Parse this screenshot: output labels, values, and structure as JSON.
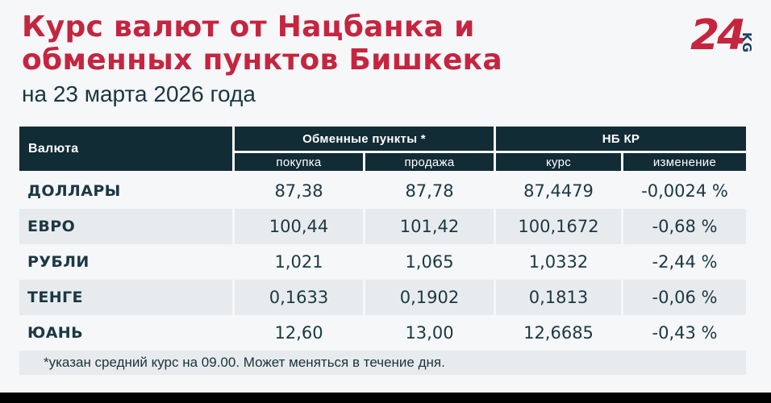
{
  "header": {
    "title_line1": "Курс валют от Нацбанка и",
    "title_line2": "обменных пунктов Бишкека",
    "subtitle": "на 23 марта 2026 года",
    "logo_number": "24",
    "logo_suffix": "KG"
  },
  "chart_data": {
    "type": "table",
    "title": "Курс валют от Нацбанка и обменных пунктов Бишкека",
    "subtitle": "на 23 марта 2026 года",
    "columns": {
      "currency": "Валюта",
      "group_exchange": "Обменные пункты *",
      "group_nbkr": "НБ КР",
      "buy": "покупка",
      "sell": "продажа",
      "rate": "курс",
      "change": "изменение"
    },
    "rows": [
      {
        "currency": "ДОЛЛАРЫ",
        "buy": "87,38",
        "sell": "87,78",
        "rate": "87,4479",
        "change": "-0,0024 %"
      },
      {
        "currency": "ЕВРО",
        "buy": "100,44",
        "sell": "101,42",
        "rate": "100,1672",
        "change": "-0,68 %"
      },
      {
        "currency": "РУБЛИ",
        "buy": "1,021",
        "sell": "1,065",
        "rate": "1,0332",
        "change": "-2,44 %"
      },
      {
        "currency": "ТЕНГЕ",
        "buy": "0,1633",
        "sell": "0,1902",
        "rate": "0,1813",
        "change": "-0,06 %"
      },
      {
        "currency": "ЮАНЬ",
        "buy": "12,60",
        "sell": "13,00",
        "rate": "12,6685",
        "change": "-0,43 %"
      }
    ],
    "footnote": "*указан средний курс на 09.00. Может меняться в течение дня."
  },
  "colors": {
    "page_bg": "#f5f7f9",
    "accent_red": "#c5253f",
    "header_dark": "#122c36",
    "text_dark": "#1b3844",
    "row_alt": "#e8ebed",
    "logo_navy": "#1d3f66",
    "bottom_bar": "#000000"
  }
}
